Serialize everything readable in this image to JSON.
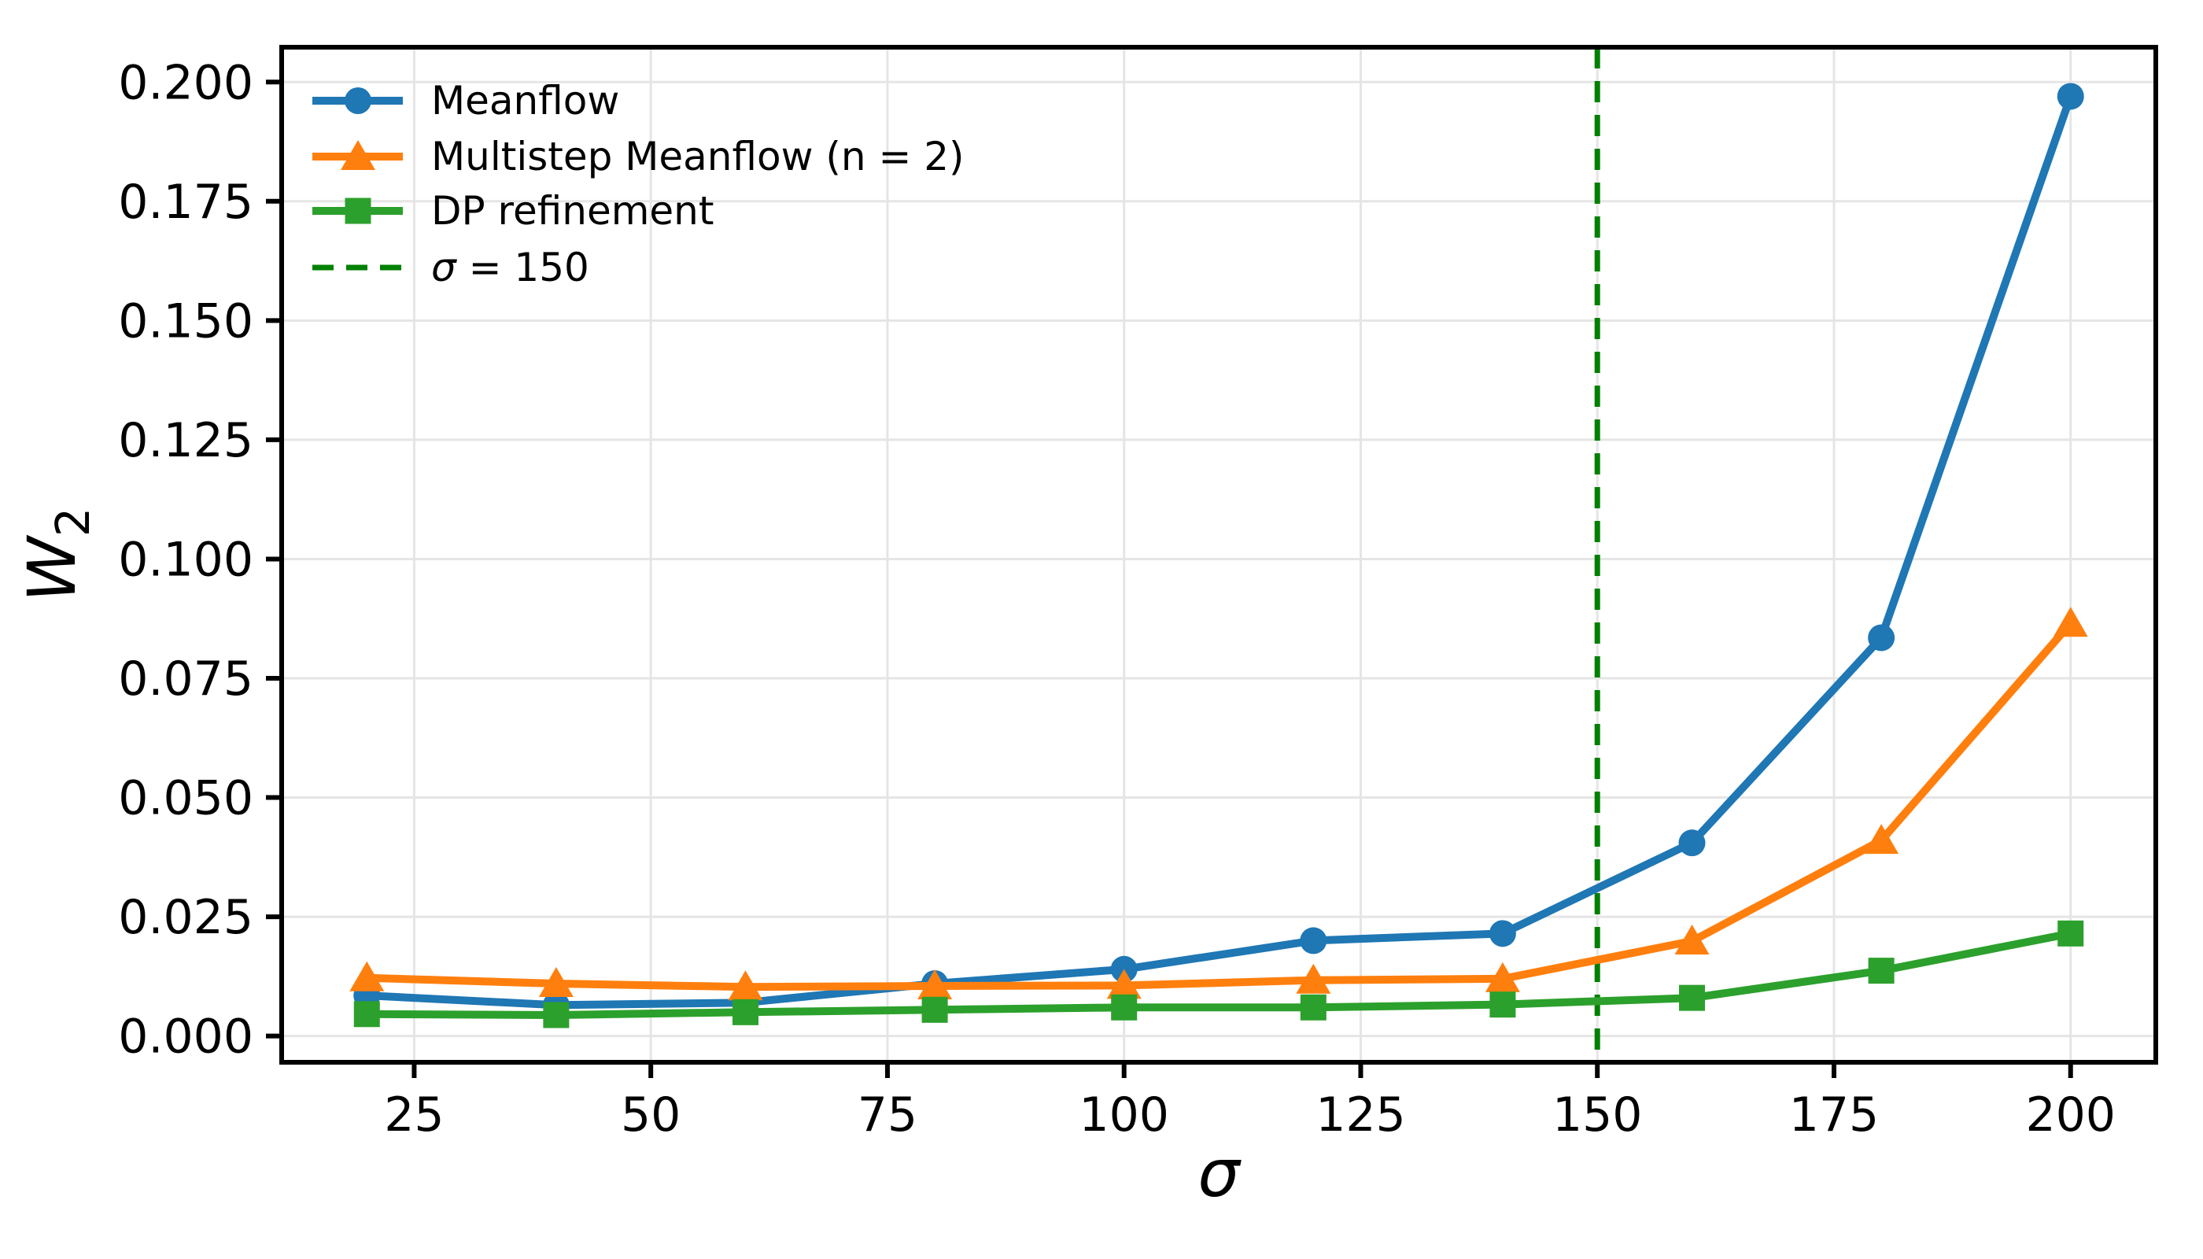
{
  "chart_data": {
    "type": "line",
    "title": "",
    "xlabel": "σ",
    "ylabel": "W₂",
    "ylabel_main": "W",
    "ylabel_sub": "2",
    "x": [
      20,
      40,
      60,
      80,
      100,
      120,
      140,
      160,
      180,
      200
    ],
    "series": [
      {
        "name": "Meanflow",
        "color": "#1f77b4",
        "marker": "circle",
        "values": [
          0.0085,
          0.0065,
          0.007,
          0.011,
          0.014,
          0.02,
          0.0215,
          0.0405,
          0.0835,
          0.197
        ]
      },
      {
        "name": "Multistep Meanflow (n = 2)",
        "color": "#ff7f0e",
        "marker": "triangle",
        "values": [
          0.0122,
          0.011,
          0.0103,
          0.0105,
          0.0106,
          0.0117,
          0.012,
          0.0199,
          0.041,
          0.0865
        ]
      },
      {
        "name": "DP refinement",
        "color": "#2ca02c",
        "marker": "square",
        "values": [
          0.0046,
          0.0044,
          0.005,
          0.0055,
          0.006,
          0.006,
          0.0066,
          0.008,
          0.0137,
          0.0215
        ]
      }
    ],
    "vline": {
      "x": 150,
      "color": "#008000",
      "style": "dashed",
      "label": "σ = 150"
    },
    "legend": {
      "position": "upper left",
      "entries": [
        {
          "parts": [
            {
              "t": "Meanflow",
              "italic": false
            }
          ],
          "sample": "series0"
        },
        {
          "parts": [
            {
              "t": "Multistep Meanflow (n = 2)",
              "italic": false
            }
          ],
          "sample": "series1"
        },
        {
          "parts": [
            {
              "t": "DP refinement",
              "italic": false
            }
          ],
          "sample": "series2"
        },
        {
          "parts": [
            {
              "t": "σ",
              "italic": true
            },
            {
              "t": " = 150",
              "italic": false
            }
          ],
          "sample": "vline"
        }
      ]
    },
    "xticks": [
      25,
      50,
      75,
      100,
      125,
      150,
      175,
      200
    ],
    "xtick_labels": [
      "25",
      "50",
      "75",
      "100",
      "125",
      "150",
      "175",
      "200"
    ],
    "yticks": [
      0.0,
      0.025,
      0.05,
      0.075,
      0.1,
      0.125,
      0.15,
      0.175,
      0.2
    ],
    "ytick_labels": [
      "0.000",
      "0.025",
      "0.050",
      "0.075",
      "0.100",
      "0.125",
      "0.150",
      "0.175",
      "0.200"
    ],
    "xlim": [
      11,
      209
    ],
    "ylim": [
      -0.0055,
      0.2073
    ],
    "grid": true,
    "colors": {
      "grid": "#e5e5e5",
      "spine": "#000000",
      "text": "#000000",
      "background": "#ffffff"
    }
  }
}
